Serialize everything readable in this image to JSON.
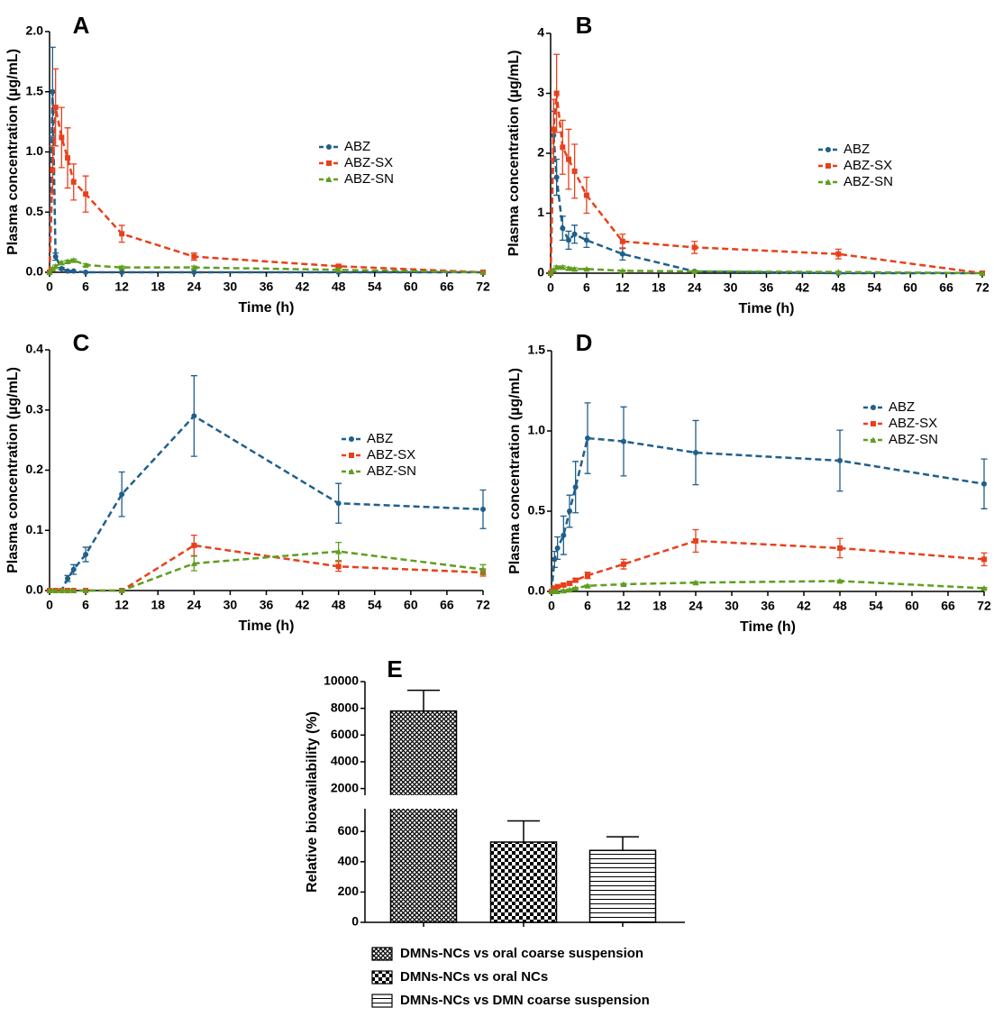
{
  "chart_data": [
    {
      "type": "line",
      "title": "A",
      "xlabel": "Time (h)",
      "ylabel": "Plasma concentration (µg/mL)",
      "x": [
        0,
        0.5,
        1,
        2,
        3,
        4,
        6,
        12,
        24,
        48,
        72
      ],
      "xlim": [
        0,
        72
      ],
      "xticks": [
        0,
        6,
        12,
        18,
        24,
        30,
        36,
        42,
        48,
        54,
        60,
        66,
        72
      ],
      "ylim": [
        0,
        2
      ],
      "yticks": [
        {
          "value": 0,
          "label": "0.0"
        },
        0.5,
        {
          "value": 1,
          "label": "1.0"
        },
        1.5,
        {
          "value": 2,
          "label": "2.0"
        }
      ],
      "series": [
        {
          "name": "ABZ",
          "color": "#1f5f8b",
          "marker": "circle",
          "values": [
            0,
            1.5,
            0.13,
            0.03,
            0.01,
            0.01,
            0,
            0,
            0,
            0,
            0
          ],
          "errors": [
            0,
            0.37,
            0.03,
            0.01,
            0,
            0,
            0,
            0,
            0,
            0,
            0
          ]
        },
        {
          "name": "ABZ-SX",
          "color": "#e8401c",
          "marker": "square",
          "values": [
            0,
            0.85,
            1.37,
            1.12,
            0.95,
            0.75,
            0.65,
            0.32,
            0.13,
            0.05,
            0
          ],
          "errors": [
            0,
            0.2,
            0.32,
            0.25,
            0.25,
            0.15,
            0.15,
            0.07,
            0.03,
            0.01,
            0
          ]
        },
        {
          "name": "ABZ-SN",
          "color": "#5f9e1f",
          "marker": "triangle",
          "values": [
            0,
            0.03,
            0.05,
            0.08,
            0.09,
            0.1,
            0.06,
            0.04,
            0.04,
            0.02,
            0
          ],
          "errors": [
            0,
            0.01,
            0.01,
            0.01,
            0.01,
            0.01,
            0.01,
            0.01,
            0.01,
            0.01,
            0
          ]
        }
      ]
    },
    {
      "type": "line",
      "title": "B",
      "xlabel": "Time (h)",
      "ylabel": "Plasma concentration (µg/mL)",
      "x": [
        0,
        0.5,
        1,
        2,
        3,
        4,
        6,
        12,
        24,
        48,
        72
      ],
      "xlim": [
        0,
        72
      ],
      "xticks": [
        0,
        6,
        12,
        18,
        24,
        30,
        36,
        42,
        48,
        54,
        60,
        66,
        72
      ],
      "ylim": [
        0,
        4
      ],
      "yticks": [
        0,
        1,
        2,
        3,
        4
      ],
      "series": [
        {
          "name": "ABZ",
          "color": "#1f5f8b",
          "marker": "circle",
          "values": [
            0,
            2.3,
            1.6,
            0.75,
            0.55,
            0.65,
            0.55,
            0.32,
            0.03,
            0,
            0
          ],
          "errors": [
            0,
            0.4,
            0.3,
            0.2,
            0.15,
            0.15,
            0.12,
            0.1,
            0.01,
            0,
            0
          ]
        },
        {
          "name": "ABZ-SX",
          "color": "#e8401c",
          "marker": "square",
          "values": [
            0,
            2.4,
            3.0,
            2.1,
            1.9,
            1.7,
            1.3,
            0.53,
            0.43,
            0.32,
            0
          ],
          "errors": [
            0,
            0.5,
            0.65,
            0.45,
            0.5,
            0.45,
            0.3,
            0.12,
            0.1,
            0.08,
            0
          ]
        },
        {
          "name": "ABZ-SN",
          "color": "#5f9e1f",
          "marker": "triangle",
          "values": [
            0,
            0.05,
            0.1,
            0.1,
            0.08,
            0.07,
            0.07,
            0.04,
            0.03,
            0.02,
            0
          ],
          "errors": [
            0,
            0.02,
            0.02,
            0.02,
            0.02,
            0.02,
            0.01,
            0.01,
            0.01,
            0.01,
            0
          ]
        }
      ]
    },
    {
      "type": "line",
      "title": "C",
      "xlabel": "Time (h)",
      "ylabel": "Plasma concentration (µg/mL)",
      "x": [
        0,
        1,
        2,
        3,
        4,
        6,
        12,
        24,
        48,
        72
      ],
      "xlim": [
        0,
        72
      ],
      "xticks": [
        0,
        6,
        12,
        18,
        24,
        30,
        36,
        42,
        48,
        54,
        60,
        66,
        72
      ],
      "ylim": [
        0,
        0.4
      ],
      "yticks": [
        {
          "value": 0,
          "label": "0.0"
        },
        0.1,
        0.2,
        0.3,
        0.4
      ],
      "series": [
        {
          "name": "ABZ",
          "color": "#1f5f8b",
          "marker": "circle",
          "values": [
            0,
            0,
            0,
            0.02,
            0.035,
            0.06,
            0.16,
            0.29,
            0.145,
            0.135
          ],
          "errors": [
            0,
            0,
            0,
            0.005,
            0.008,
            0.012,
            0.037,
            0.067,
            0.033,
            0.032
          ]
        },
        {
          "name": "ABZ-SX",
          "color": "#e8401c",
          "marker": "square",
          "values": [
            0,
            0,
            0,
            0,
            0,
            0,
            0,
            0.075,
            0.04,
            0.03
          ],
          "errors": [
            0,
            0,
            0,
            0,
            0,
            0,
            0,
            0.017,
            0.008,
            0.006
          ]
        },
        {
          "name": "ABZ-SN",
          "color": "#5f9e1f",
          "marker": "triangle",
          "values": [
            0,
            0,
            0,
            0,
            0,
            0,
            0,
            0.045,
            0.065,
            0.035
          ],
          "errors": [
            0,
            0,
            0,
            0,
            0,
            0,
            0,
            0.012,
            0.015,
            0.008
          ]
        }
      ]
    },
    {
      "type": "line",
      "title": "D",
      "xlabel": "Time (h)",
      "ylabel": "Plasma concentration (µg/mL)",
      "x": [
        0,
        0.5,
        1,
        2,
        3,
        4,
        6,
        12,
        24,
        48,
        72
      ],
      "xlim": [
        0,
        72
      ],
      "xticks": [
        0,
        6,
        12,
        18,
        24,
        30,
        36,
        42,
        48,
        54,
        60,
        66,
        72
      ],
      "ylim": [
        0,
        1.5
      ],
      "yticks": [
        {
          "value": 0,
          "label": "0.0"
        },
        0.5,
        {
          "value": 1,
          "label": "1.0"
        },
        1.5
      ],
      "series": [
        {
          "name": "ABZ",
          "color": "#1f5f8b",
          "marker": "circle",
          "values": [
            0,
            0.2,
            0.27,
            0.35,
            0.5,
            0.65,
            0.955,
            0.935,
            0.865,
            0.815,
            0.67
          ],
          "errors": [
            0,
            0.05,
            0.07,
            0.12,
            0.1,
            0.16,
            0.22,
            0.215,
            0.2,
            0.19,
            0.155
          ]
        },
        {
          "name": "ABZ-SX",
          "color": "#e8401c",
          "marker": "square",
          "values": [
            0,
            0.02,
            0.03,
            0.04,
            0.05,
            0.07,
            0.1,
            0.17,
            0.315,
            0.27,
            0.2
          ],
          "errors": [
            0,
            0.005,
            0.005,
            0.01,
            0.01,
            0.01,
            0.02,
            0.03,
            0.07,
            0.06,
            0.04
          ]
        },
        {
          "name": "ABZ-SN",
          "color": "#5f9e1f",
          "marker": "triangle",
          "values": [
            0,
            0,
            0,
            0.005,
            0.01,
            0.02,
            0.035,
            0.045,
            0.055,
            0.065,
            0.02
          ],
          "errors": [
            0,
            0,
            0,
            0.005,
            0.005,
            0.005,
            0.005,
            0.005,
            0.005,
            0.005,
            0.005
          ]
        }
      ]
    },
    {
      "type": "bar",
      "title": "E",
      "ylabel": "Relative  bioavailability (%)",
      "categories": [
        "DMNs-NCs vs oral coarse suspension",
        "DMNs-NCs vs oral NCs",
        "DMNs-NCs vs DMN coarse suspension"
      ],
      "values": [
        7800,
        530,
        475
      ],
      "errors": [
        1550,
        140,
        90
      ],
      "patterns": [
        "crosshatch",
        "checker",
        "hlines"
      ],
      "ylim": [
        0,
        10000
      ],
      "ybreak": [
        750,
        1500
      ],
      "yticks": [
        0,
        200,
        400,
        600,
        2000,
        4000,
        6000,
        8000,
        10000
      ]
    }
  ]
}
